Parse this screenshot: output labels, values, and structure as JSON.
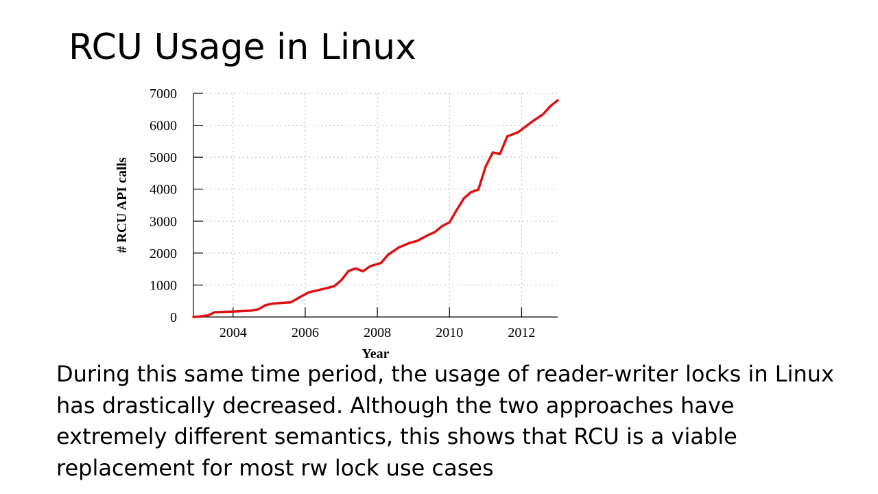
{
  "slide": {
    "title": "RCU Usage in Linux",
    "body": "During this same time period, the usage of reader-writer locks in Linux has drastically decreased.  Although the two approaches have extremely different semantics, this shows that RCU is a viable replacement for most rw lock use cases"
  },
  "chart_data": {
    "type": "line",
    "title": "",
    "xlabel": "Year",
    "ylabel": "# RCU API calls",
    "xlim": [
      2002.9,
      2013.0
    ],
    "ylim": [
      0,
      7000
    ],
    "x_ticks": [
      2004,
      2006,
      2008,
      2010,
      2012
    ],
    "y_ticks": [
      0,
      1000,
      2000,
      3000,
      4000,
      5000,
      6000,
      7000
    ],
    "grid": true,
    "legend": "none",
    "colors": {
      "line": "#dd1111"
    },
    "series": [
      {
        "x": [
          2002.9,
          2003.1,
          2003.3,
          2003.5,
          2004.0,
          2004.5,
          2004.7,
          2004.9,
          2005.1,
          2005.6,
          2005.9,
          2006.1,
          2006.4,
          2006.8,
          2007.0,
          2007.2,
          2007.4,
          2007.6,
          2007.8,
          2008.1,
          2008.3,
          2008.6,
          2008.9,
          2009.1,
          2009.4,
          2009.6,
          2009.8,
          2010.0,
          2010.2,
          2010.4,
          2010.6,
          2010.8,
          2011.0,
          2011.2,
          2011.4,
          2011.6,
          2011.9,
          2012.1,
          2012.3,
          2012.6,
          2012.8,
          2013.0
        ],
        "y": [
          0,
          20,
          50,
          150,
          170,
          200,
          240,
          370,
          420,
          460,
          650,
          770,
          850,
          960,
          1150,
          1440,
          1520,
          1430,
          1590,
          1690,
          1950,
          2180,
          2320,
          2380,
          2560,
          2660,
          2850,
          2960,
          3350,
          3710,
          3910,
          3980,
          4700,
          5150,
          5100,
          5650,
          5780,
          5950,
          6120,
          6350,
          6600,
          6780
        ]
      }
    ]
  }
}
